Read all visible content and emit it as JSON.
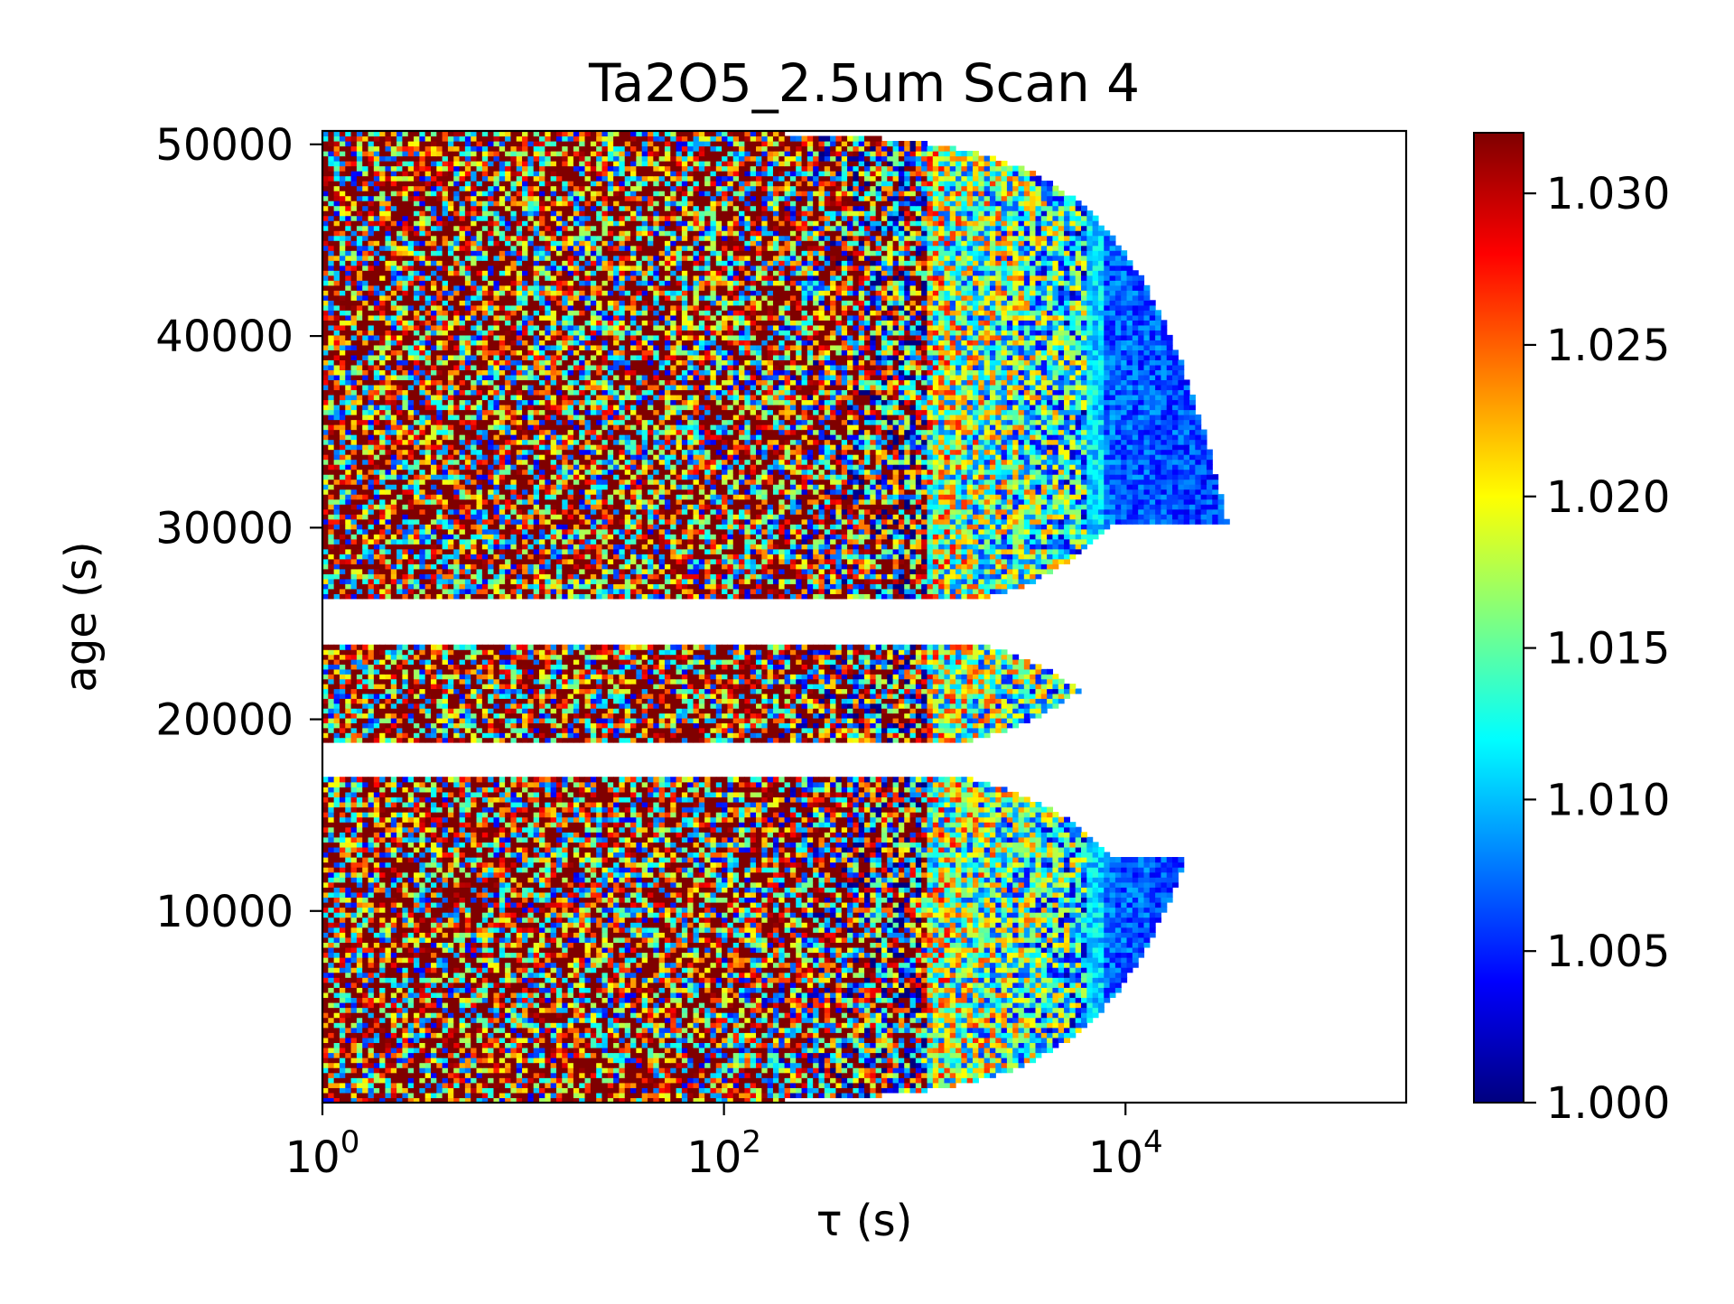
{
  "chart_data": {
    "type": "heatmap",
    "title": "Ta2O5_2.5um Scan 4",
    "xlabel": "τ (s)",
    "ylabel": "age (s)",
    "x_scale": "log",
    "xlim": [
      1,
      250000
    ],
    "ylim": [
      0,
      50700
    ],
    "x_ticks": [
      {
        "value": 1,
        "base": "10",
        "exp": "0"
      },
      {
        "value": 100,
        "base": "10",
        "exp": "2"
      },
      {
        "value": 10000,
        "base": "10",
        "exp": "4"
      }
    ],
    "y_ticks": [
      {
        "value": 10000,
        "label": "10000"
      },
      {
        "value": 20000,
        "label": "20000"
      },
      {
        "value": 30000,
        "label": "30000"
      },
      {
        "value": 40000,
        "label": "40000"
      },
      {
        "value": 50000,
        "label": "50000"
      }
    ],
    "colormap": "jet",
    "colorbar": {
      "min": 1.0,
      "max": 1.032,
      "ticks": [
        {
          "value": 1.0,
          "label": "1.000"
        },
        {
          "value": 1.005,
          "label": "1.005"
        },
        {
          "value": 1.01,
          "label": "1.010"
        },
        {
          "value": 1.015,
          "label": "1.015"
        },
        {
          "value": 1.02,
          "label": "1.020"
        },
        {
          "value": 1.025,
          "label": "1.025"
        },
        {
          "value": 1.03,
          "label": "1.030"
        }
      ]
    },
    "age_segments": [
      {
        "age_start": 0,
        "age_end": 17000
      },
      {
        "age_start": 18800,
        "age_end": 23900
      },
      {
        "age_start": 26300,
        "age_end": 50700
      }
    ],
    "data_gaps": [
      {
        "age_start": 17000,
        "age_end": 18800
      },
      {
        "age_start": 23900,
        "age_end": 26300
      }
    ],
    "trend": "ratio values near 1.03 at small τ decreasing to about 1.005 at τ above 10^4 s"
  }
}
